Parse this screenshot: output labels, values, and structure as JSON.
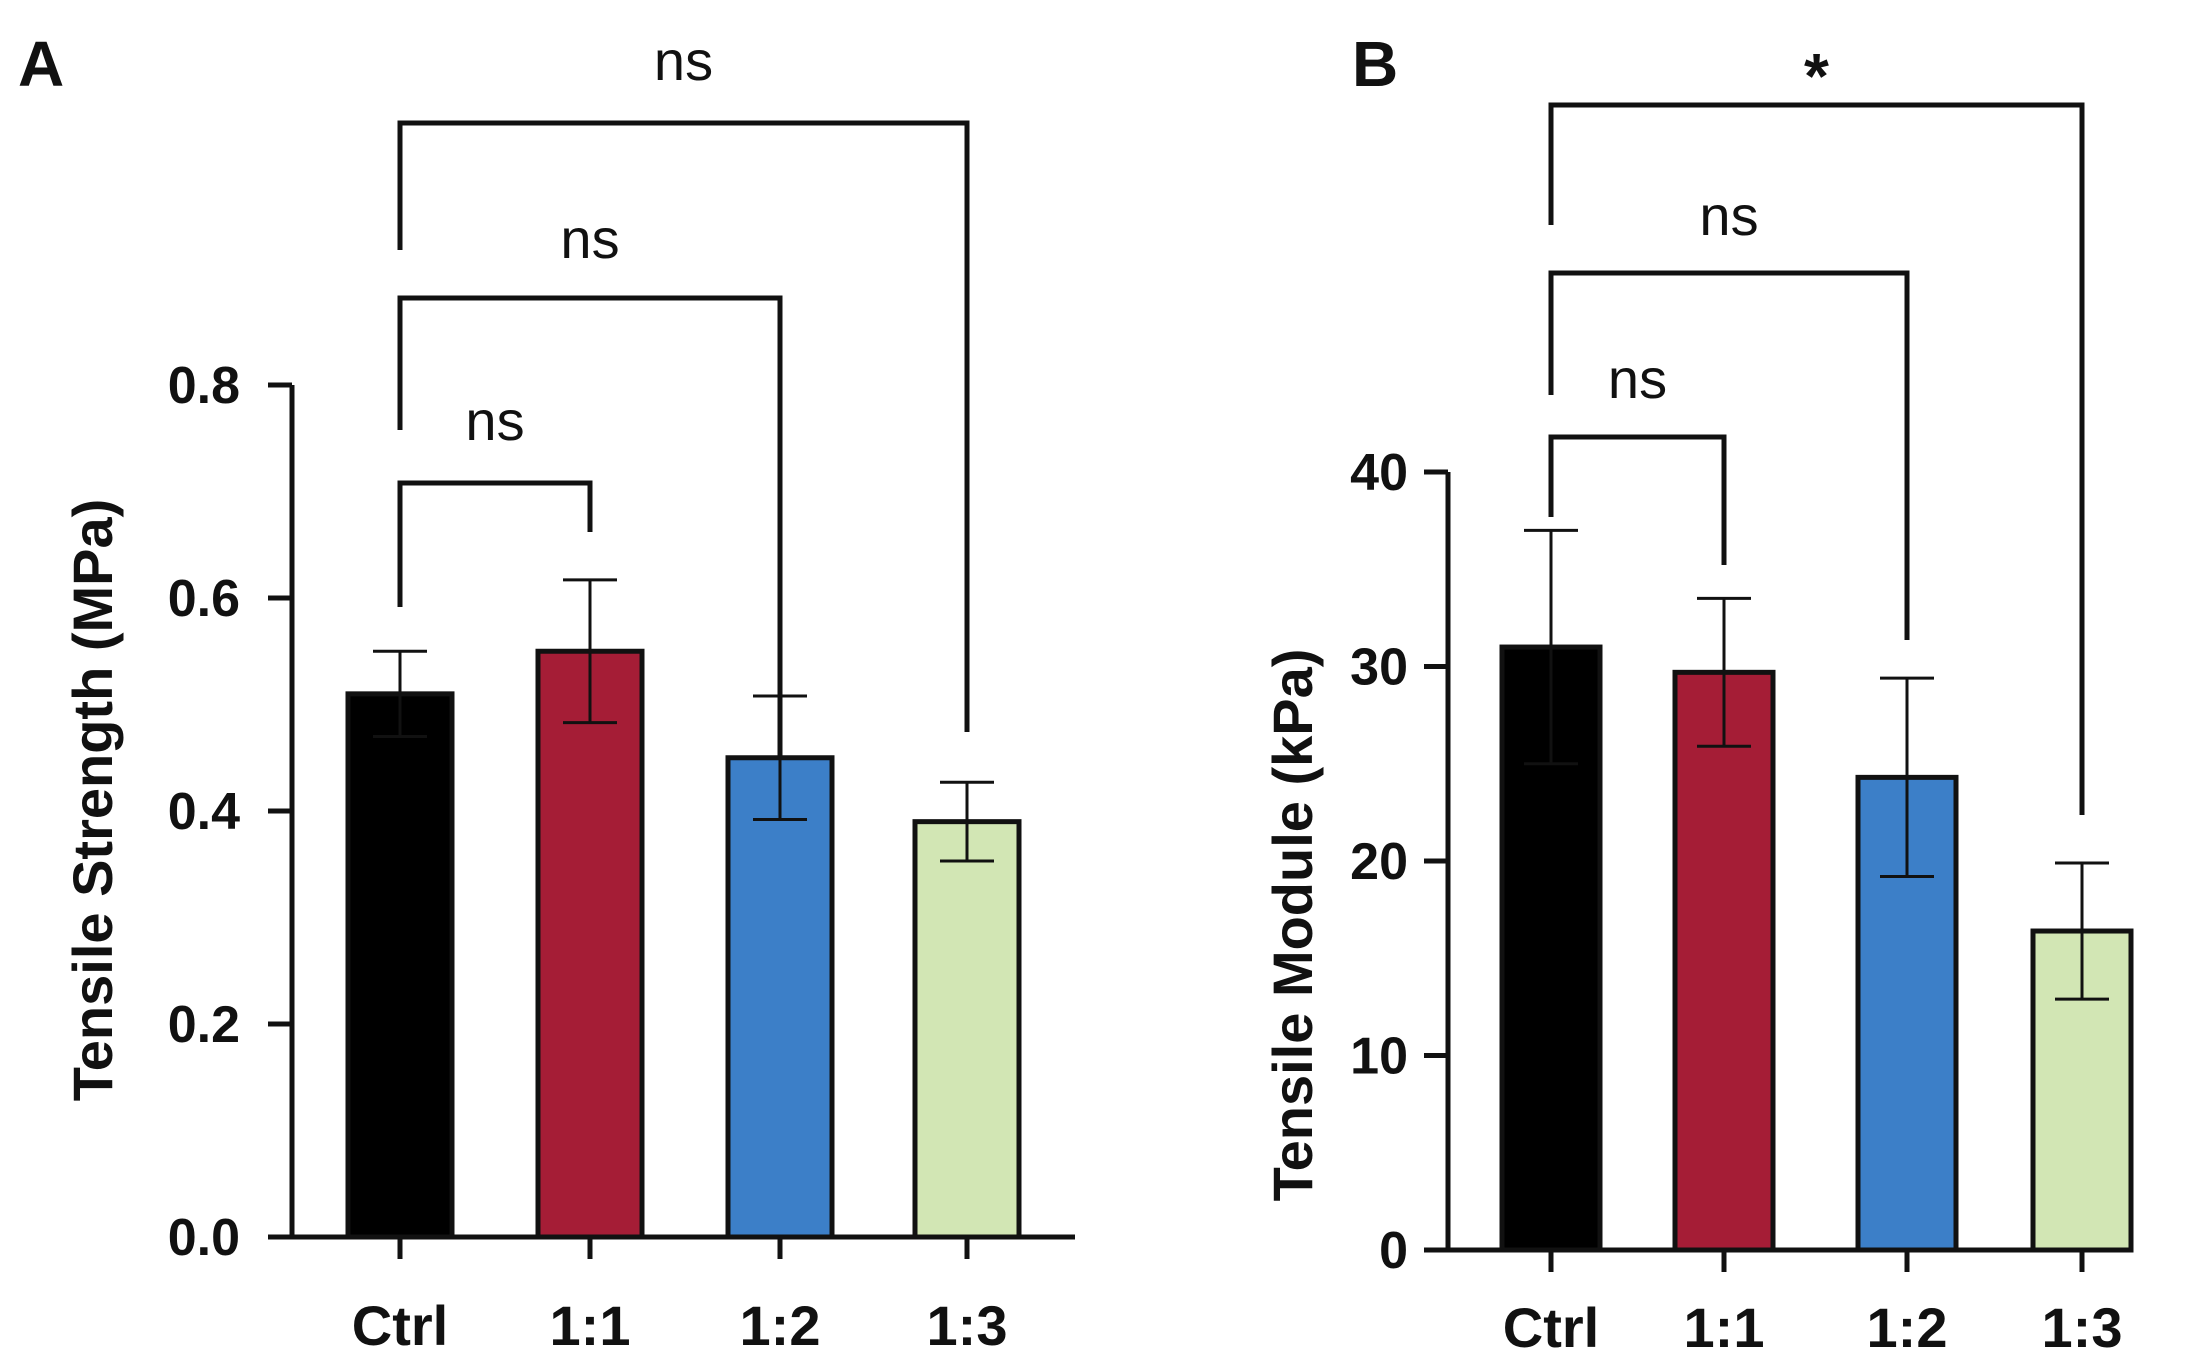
{
  "chart_data": [
    {
      "panel": "A",
      "type": "bar",
      "categories": [
        "Ctrl",
        "1:1",
        "1:2",
        "1:3"
      ],
      "values": [
        0.51,
        0.55,
        0.45,
        0.39
      ],
      "errors": [
        0.04,
        0.067,
        0.058,
        0.037
      ],
      "colors": [
        "#000000",
        "#a51d36",
        "#3c7fc8",
        "#d2e6b4"
      ],
      "ylabel": "Tensile Strength (MPa)",
      "ylim": [
        0,
        0.8
      ],
      "yticks": [
        0.0,
        0.2,
        0.4,
        0.6,
        0.8
      ],
      "ytick_labels": [
        "0.0",
        "0.2",
        "0.4",
        "0.6",
        "0.8"
      ],
      "comparisons": [
        {
          "from": "Ctrl",
          "to": "1:1",
          "label": "ns"
        },
        {
          "from": "Ctrl",
          "to": "1:2",
          "label": "ns"
        },
        {
          "from": "Ctrl",
          "to": "1:3",
          "label": "ns"
        }
      ]
    },
    {
      "panel": "B",
      "type": "bar",
      "categories": [
        "Ctrl",
        "1:1",
        "1:2",
        "1:3"
      ],
      "values": [
        31.0,
        29.7,
        24.3,
        16.4
      ],
      "errors": [
        6.0,
        3.8,
        5.1,
        3.5
      ],
      "colors": [
        "#000000",
        "#a51d36",
        "#3c7fc8",
        "#d2e6b4"
      ],
      "ylabel": "Tensile Module (kPa)",
      "ylim": [
        0,
        40
      ],
      "yticks": [
        0,
        10,
        20,
        30,
        40
      ],
      "ytick_labels": [
        "0",
        "10",
        "20",
        "30",
        "40"
      ],
      "comparisons": [
        {
          "from": "Ctrl",
          "to": "1:1",
          "label": "ns"
        },
        {
          "from": "Ctrl",
          "to": "1:2",
          "label": "ns"
        },
        {
          "from": "Ctrl",
          "to": "1:3",
          "label": "*"
        }
      ]
    }
  ]
}
